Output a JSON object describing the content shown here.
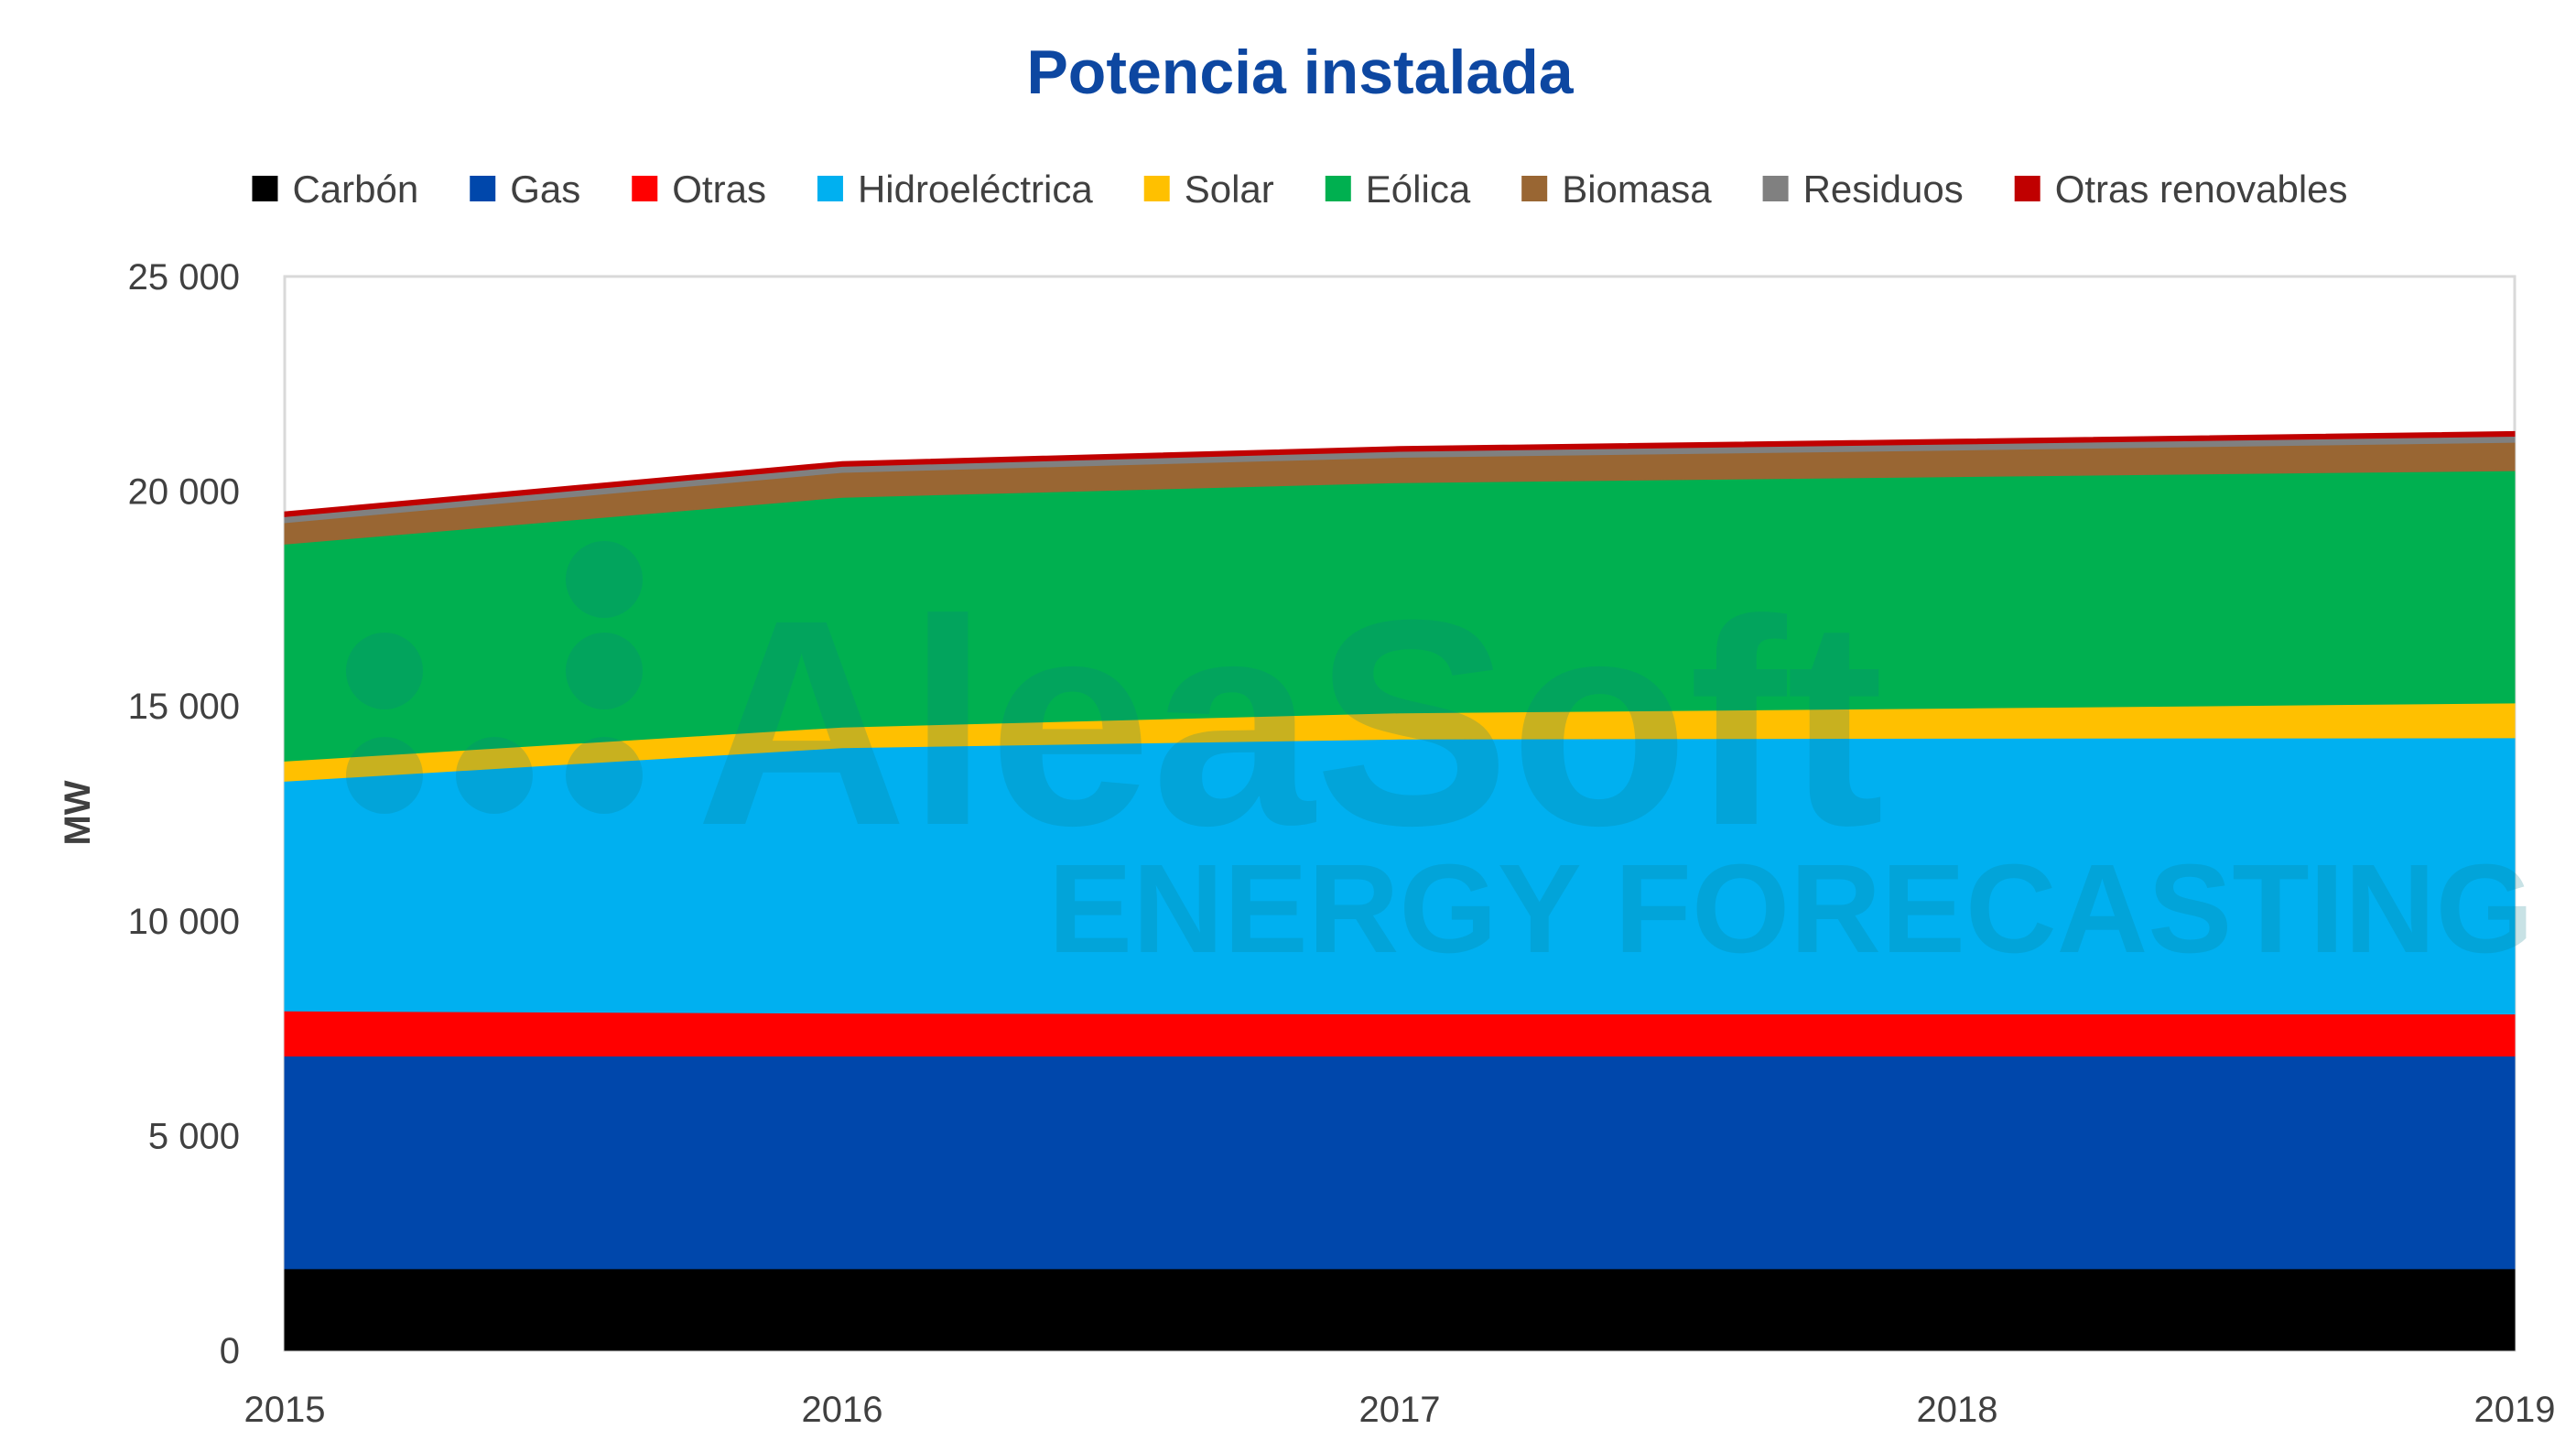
{
  "chart_data": {
    "type": "area",
    "stacked": true,
    "title": "Potencia instalada",
    "ylabel": "MW",
    "xlabel": "",
    "x": [
      "2015",
      "2016",
      "2017",
      "2018",
      "2019"
    ],
    "ylim": [
      0,
      25000
    ],
    "yticks": [
      0,
      5000,
      10000,
      15000,
      20000,
      25000
    ],
    "ytick_labels": [
      "0",
      "5 000",
      "10 000",
      "15 000",
      "20 000",
      "25 000"
    ],
    "grid": false,
    "legend_position": "top",
    "series": [
      {
        "name": "Carbón",
        "color": "#000000",
        "values": [
          1900,
          1900,
          1900,
          1900,
          1900
        ]
      },
      {
        "name": "Gas",
        "color": "#0047ab",
        "values": [
          4950,
          4950,
          4950,
          4950,
          4950
        ]
      },
      {
        "name": "Otras",
        "color": "#ff0000",
        "values": [
          1050,
          1000,
          980,
          980,
          980
        ]
      },
      {
        "name": "Hidroeléctrica",
        "color": "#00b0f0",
        "values": [
          5350,
          6180,
          6400,
          6420,
          6430
        ]
      },
      {
        "name": "Solar",
        "color": "#ffc000",
        "values": [
          470,
          480,
          610,
          700,
          810
        ]
      },
      {
        "name": "Eólica",
        "color": "#00b050",
        "values": [
          5050,
          5350,
          5360,
          5390,
          5410
        ]
      },
      {
        "name": "Biomasa",
        "color": "#996633",
        "values": [
          500,
          580,
          590,
          620,
          660
        ]
      },
      {
        "name": "Residuos",
        "color": "#808080",
        "values": [
          140,
          140,
          140,
          140,
          140
        ]
      },
      {
        "name": "Otras renovables",
        "color": "#c00000",
        "values": [
          110,
          110,
          110,
          110,
          110
        ]
      }
    ]
  },
  "watermark": {
    "brand": "AleaSoft",
    "tagline": "ENERGY FORECASTING"
  }
}
